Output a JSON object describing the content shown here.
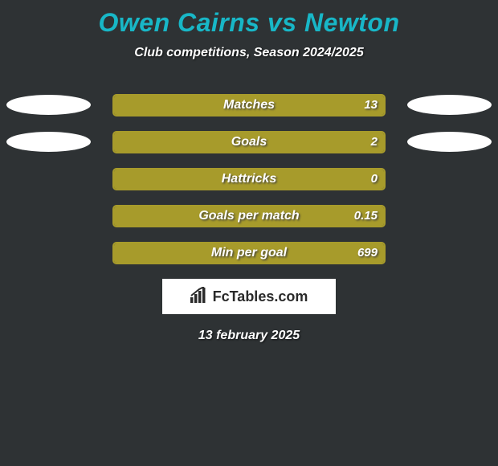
{
  "background_color": "#2e3234",
  "accent_color": "#18b7c7",
  "bar_border_color": "#a79b2b",
  "bar_fill_color": "#a79b2b",
  "ellipse_color": "#ffffff",
  "title": {
    "player1": "Owen Cairns",
    "vs": "vs",
    "player2": "Newton"
  },
  "subtitle": "Club competitions, Season 2024/2025",
  "stats": [
    {
      "label": "Matches",
      "value": "13",
      "fill_pct": 100,
      "show_left_ellipse": true,
      "show_right_ellipse": true
    },
    {
      "label": "Goals",
      "value": "2",
      "fill_pct": 100,
      "show_left_ellipse": true,
      "show_right_ellipse": true
    },
    {
      "label": "Hattricks",
      "value": "0",
      "fill_pct": 100,
      "show_left_ellipse": false,
      "show_right_ellipse": false
    },
    {
      "label": "Goals per match",
      "value": "0.15",
      "fill_pct": 100,
      "show_left_ellipse": false,
      "show_right_ellipse": false
    },
    {
      "label": "Min per goal",
      "value": "699",
      "fill_pct": 100,
      "show_left_ellipse": false,
      "show_right_ellipse": false
    }
  ],
  "brand": "FcTables.com",
  "date": "13 february 2025"
}
